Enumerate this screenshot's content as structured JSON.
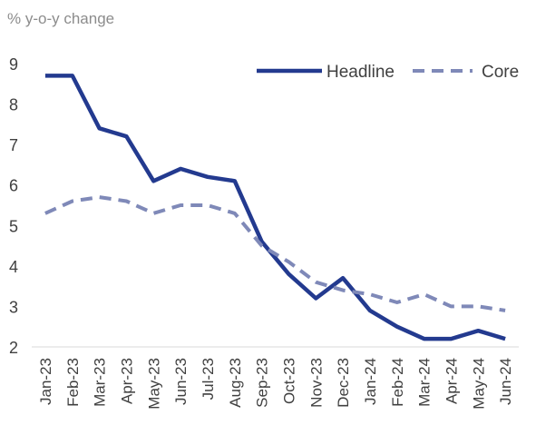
{
  "chart_data": {
    "type": "line",
    "title": "",
    "ylabel": "% y-o-y change",
    "xlabel": "",
    "ylim": [
      2,
      9
    ],
    "yticks": [
      2,
      3,
      4,
      5,
      6,
      7,
      8,
      9
    ],
    "grid": false,
    "legend_position": "top-right",
    "categories": [
      "Jan-23",
      "Feb-23",
      "Mar-23",
      "Apr-23",
      "May-23",
      "Jun-23",
      "Jul-23",
      "Aug-23",
      "Sep-23",
      "Oct-23",
      "Nov-23",
      "Dec-23",
      "Jan-24",
      "Feb-24",
      "Mar-24",
      "Apr-24",
      "May-24",
      "Jun-24"
    ],
    "series": [
      {
        "name": "Headline",
        "style": "solid",
        "color": "#233a8f",
        "values": [
          8.7,
          8.7,
          7.4,
          7.2,
          6.1,
          6.4,
          6.2,
          6.1,
          4.6,
          3.8,
          3.2,
          3.7,
          2.9,
          2.5,
          2.2,
          2.2,
          2.4,
          2.2
        ]
      },
      {
        "name": "Core",
        "style": "dashed",
        "color": "#7f89b8",
        "values": [
          5.3,
          5.6,
          5.7,
          5.6,
          5.3,
          5.5,
          5.5,
          5.3,
          4.5,
          4.1,
          3.6,
          3.4,
          3.3,
          3.1,
          3.3,
          3.0,
          3.0,
          2.9
        ]
      }
    ]
  }
}
